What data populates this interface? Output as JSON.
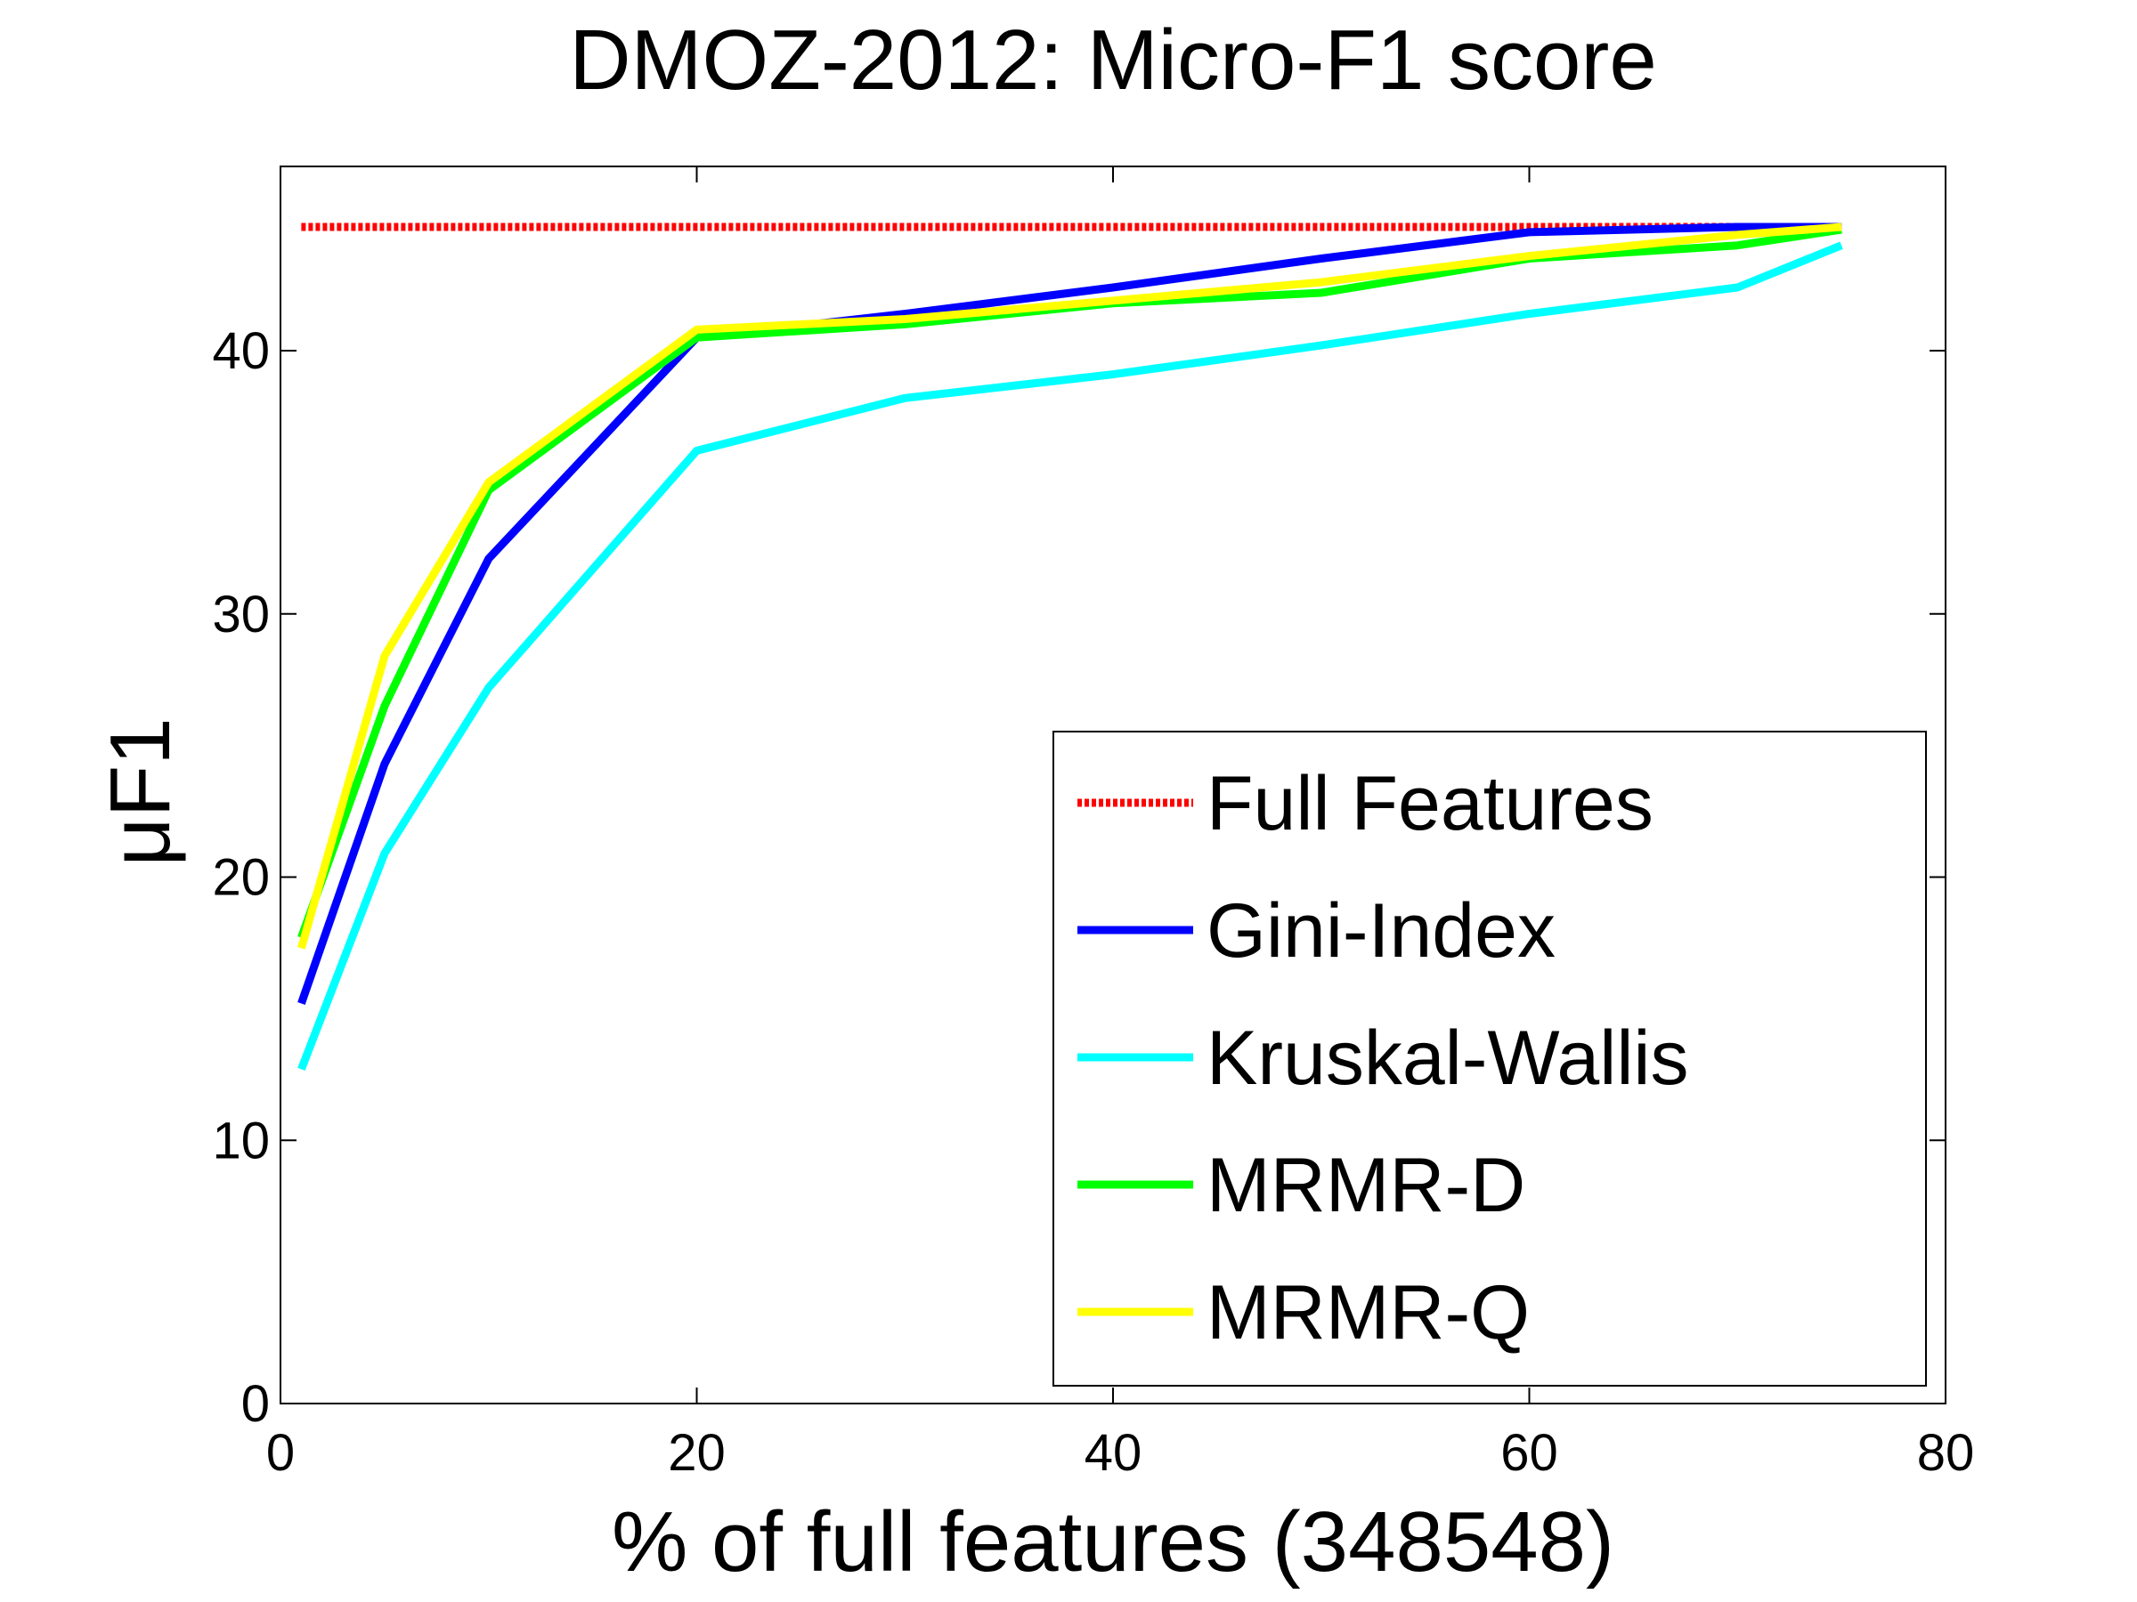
{
  "chart_data": {
    "type": "line",
    "title": "DMOZ-2012: Micro-F1 score",
    "xlabel": "% of full features (348548)",
    "ylabel": "μF1",
    "xlim": [
      0,
      80
    ],
    "ylim": [
      0,
      47
    ],
    "xticks": [
      0,
      20,
      40,
      60,
      80
    ],
    "yticks": [
      0,
      10,
      20,
      30,
      40
    ],
    "grid": false,
    "legend_position": "bottom-right",
    "series": [
      {
        "name": "Full Features",
        "color": "#ff0000",
        "style": "dotted",
        "x": [
          1,
          75
        ],
        "y": [
          44.7,
          44.7
        ]
      },
      {
        "name": "Gini-Index",
        "color": "#0000ff",
        "style": "solid",
        "x": [
          1,
          5,
          10,
          20,
          30,
          40,
          50,
          60,
          70,
          75
        ],
        "y": [
          15.2,
          24.3,
          32.1,
          40.5,
          41.4,
          42.4,
          43.5,
          44.5,
          44.7,
          44.7
        ]
      },
      {
        "name": "Kruskal-Wallis",
        "color": "#00ffff",
        "style": "solid",
        "x": [
          1,
          5,
          10,
          20,
          30,
          40,
          50,
          60,
          70,
          75
        ],
        "y": [
          12.7,
          20.9,
          27.2,
          36.2,
          38.2,
          39.1,
          40.2,
          41.4,
          42.4,
          44.0
        ]
      },
      {
        "name": "MRMR-D",
        "color": "#00ff00",
        "style": "solid",
        "x": [
          1,
          5,
          10,
          20,
          30,
          40,
          50,
          60,
          70,
          75
        ],
        "y": [
          17.7,
          26.5,
          34.7,
          40.5,
          41.0,
          41.8,
          42.2,
          43.5,
          44.0,
          44.6
        ]
      },
      {
        "name": "MRMR-Q",
        "color": "#ffff00",
        "style": "solid",
        "x": [
          1,
          5,
          10,
          20,
          30,
          40,
          50,
          60,
          70,
          75
        ],
        "y": [
          17.3,
          28.4,
          35.0,
          40.8,
          41.2,
          41.9,
          42.6,
          43.6,
          44.4,
          44.7
        ]
      }
    ]
  }
}
